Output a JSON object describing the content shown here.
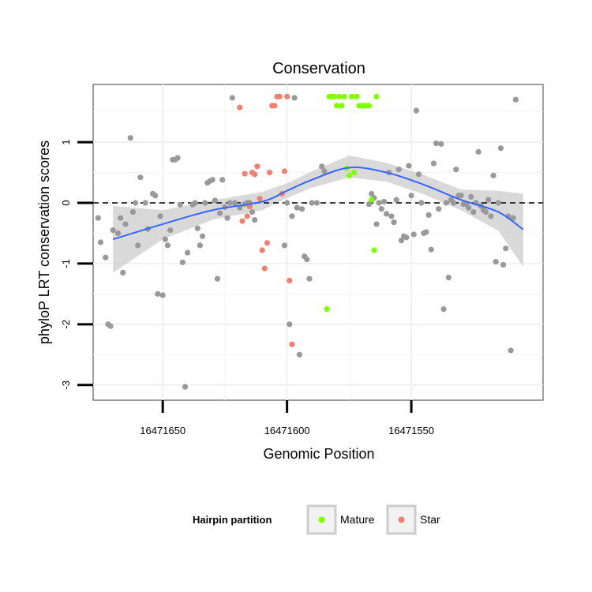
{
  "chart_data": {
    "type": "scatter",
    "title": "Conservation",
    "xlabel": "Genomic Position",
    "ylabel": "phyloP LRT conservation scores",
    "x_reversed": true,
    "xlim": [
      16471678,
      16471497
    ],
    "ylim": [
      -3.25,
      1.95
    ],
    "x_ticks": [
      16471650,
      16471600,
      16471550
    ],
    "y_ticks": [
      -3,
      -2,
      -1,
      0,
      1
    ],
    "grid": true,
    "reference_line": 0,
    "legend": {
      "title": "Hairpin partition",
      "placement": "bottom",
      "entries": [
        {
          "label": "Mature",
          "color": "#7fff00"
        },
        {
          "label": "Star",
          "color": "#f08070"
        }
      ]
    },
    "colors": {
      "other": "#999999",
      "smooth_line": "#3366ff",
      "ribbon": "#cccccc"
    },
    "series": [
      {
        "group": "other",
        "points": [
          [
            16471676,
            -0.25
          ],
          [
            16471675,
            -0.65
          ],
          [
            16471673,
            -0.9
          ],
          [
            16471672,
            -2.0
          ],
          [
            16471671,
            -2.03
          ],
          [
            16471670,
            -0.45
          ],
          [
            16471668,
            -0.5
          ],
          [
            16471667,
            -0.25
          ],
          [
            16471666,
            -1.15
          ],
          [
            16471665,
            -0.35
          ],
          [
            16471663,
            1.07
          ],
          [
            16471662,
            -0.15
          ],
          [
            16471661,
            0.0
          ],
          [
            16471660,
            -0.7
          ],
          [
            16471659,
            0.42
          ],
          [
            16471657,
            0.0
          ],
          [
            16471656,
            -0.43
          ],
          [
            16471654,
            0.15
          ],
          [
            16471653,
            0.12
          ],
          [
            16471652,
            -1.5
          ],
          [
            16471651,
            -0.22
          ],
          [
            16471650,
            -1.52
          ],
          [
            16471649,
            -0.6
          ],
          [
            16471648,
            -0.7
          ],
          [
            16471647,
            -0.45
          ],
          [
            16471646,
            0.71
          ],
          [
            16471645,
            0.71
          ],
          [
            16471644,
            0.74
          ],
          [
            16471643,
            -0.03
          ],
          [
            16471642,
            -0.98
          ],
          [
            16471641,
            -3.03
          ],
          [
            16471640,
            -0.82
          ],
          [
            16471638,
            -0.03
          ],
          [
            16471637,
            0.0
          ],
          [
            16471636,
            -0.42
          ],
          [
            16471635,
            -0.7
          ],
          [
            16471634,
            -0.55
          ],
          [
            16471633,
            0.0
          ],
          [
            16471632,
            0.33
          ],
          [
            16471631,
            0.36
          ],
          [
            16471630,
            0.38
          ],
          [
            16471629,
            0.04
          ],
          [
            16471628,
            -1.25
          ],
          [
            16471627,
            -0.17
          ],
          [
            16471626,
            0.38
          ],
          [
            16471625,
            -0.07
          ],
          [
            16471624,
            -0.25
          ],
          [
            16471623,
            0.0
          ],
          [
            16471622,
            1.73
          ],
          [
            16471621,
            0.0
          ],
          [
            16471619,
            -0.08
          ],
          [
            16471617,
            -0.02
          ],
          [
            16471616,
            0.0
          ],
          [
            16471615,
            0.0
          ],
          [
            16471614,
            -0.15
          ],
          [
            16471613,
            -0.28
          ],
          [
            16471601,
            -0.7
          ],
          [
            16471600,
            0.0
          ],
          [
            16471599,
            -2.0
          ],
          [
            16471598,
            -0.22
          ],
          [
            16471597,
            1.73
          ],
          [
            16471596,
            -0.08
          ],
          [
            16471595,
            -2.5
          ],
          [
            16471594,
            -0.1
          ],
          [
            16471593,
            -0.88
          ],
          [
            16471592,
            -0.93
          ],
          [
            16471591,
            -1.25
          ],
          [
            16471590,
            0.0
          ],
          [
            16471588,
            0.0
          ],
          [
            16471586,
            0.6
          ],
          [
            16471585,
            0.52
          ],
          [
            16471567,
            -0.02
          ],
          [
            16471566,
            0.15
          ],
          [
            16471565,
            0.08
          ],
          [
            16471564,
            -0.35
          ],
          [
            16471563,
            0.0
          ],
          [
            16471562,
            -0.1
          ],
          [
            16471561,
            0.02
          ],
          [
            16471560,
            -0.18
          ],
          [
            16471559,
            0.5
          ],
          [
            16471558,
            -0.22
          ],
          [
            16471557,
            -0.32
          ],
          [
            16471556,
            0.05
          ],
          [
            16471555,
            0.55
          ],
          [
            16471554,
            -0.62
          ],
          [
            16471553,
            -0.55
          ],
          [
            16471552,
            -0.57
          ],
          [
            16471551,
            0.61
          ],
          [
            16471550,
            0.12
          ],
          [
            16471549,
            -0.52
          ],
          [
            16471548,
            1.52
          ],
          [
            16471547,
            0.47
          ],
          [
            16471546,
            0.0
          ],
          [
            16471545,
            -0.5
          ],
          [
            16471544,
            -0.48
          ],
          [
            16471543,
            -0.2
          ],
          [
            16471542,
            -0.77
          ],
          [
            16471541,
            0.65
          ],
          [
            16471540,
            0.98
          ],
          [
            16471539,
            -0.1
          ],
          [
            16471538,
            0.97
          ],
          [
            16471537,
            -1.75
          ],
          [
            16471536,
            0.0
          ],
          [
            16471535,
            -1.23
          ],
          [
            16471534,
            0.05
          ],
          [
            16471533,
            0.0
          ],
          [
            16471532,
            0.55
          ],
          [
            16471531,
            0.12
          ],
          [
            16471530,
            0.12
          ],
          [
            16471529,
            -0.02
          ],
          [
            16471528,
            -0.02
          ],
          [
            16471527,
            -0.08
          ],
          [
            16471526,
            0.1
          ],
          [
            16471525,
            -0.15
          ],
          [
            16471524,
            0.0
          ],
          [
            16471523,
            0.84
          ],
          [
            16471522,
            -0.05
          ],
          [
            16471521,
            -0.12
          ],
          [
            16471520,
            -0.15
          ],
          [
            16471519,
            0.05
          ],
          [
            16471518,
            -0.22
          ],
          [
            16471517,
            0.45
          ],
          [
            16471516,
            -0.97
          ],
          [
            16471515,
            0.0
          ],
          [
            16471514,
            0.9
          ],
          [
            16471513,
            -1.02
          ],
          [
            16471512,
            -0.75
          ],
          [
            16471511,
            -0.22
          ],
          [
            16471510,
            -2.43
          ],
          [
            16471509,
            -0.25
          ],
          [
            16471508,
            1.7
          ]
        ]
      },
      {
        "group": "Star",
        "points": [
          [
            16471619,
            1.57
          ],
          [
            16471618,
            -0.3
          ],
          [
            16471617,
            0.48
          ],
          [
            16471616,
            -0.22
          ],
          [
            16471615,
            -0.06
          ],
          [
            16471614,
            0.5
          ],
          [
            16471613,
            0.47
          ],
          [
            16471612,
            0.6
          ],
          [
            16471611,
            0.07
          ],
          [
            16471610,
            -0.78
          ],
          [
            16471609,
            -1.08
          ],
          [
            16471608,
            -0.66
          ],
          [
            16471607,
            0.5
          ],
          [
            16471606,
            1.6
          ],
          [
            16471605,
            1.6
          ],
          [
            16471604,
            1.75
          ],
          [
            16471603,
            1.75
          ],
          [
            16471602,
            0.15
          ],
          [
            16471601,
            0.52
          ],
          [
            16471600,
            1.75
          ],
          [
            16471599,
            -1.28
          ],
          [
            16471598,
            -2.33
          ]
        ]
      },
      {
        "group": "Mature",
        "points": [
          [
            16471584,
            -1.75
          ],
          [
            16471583,
            1.75
          ],
          [
            16471582,
            1.75
          ],
          [
            16471581,
            1.75
          ],
          [
            16471580,
            1.6
          ],
          [
            16471579,
            1.75
          ],
          [
            16471578,
            1.6
          ],
          [
            16471577,
            1.75
          ],
          [
            16471576,
            0.57
          ],
          [
            16471575,
            0.45
          ],
          [
            16471574,
            1.75
          ],
          [
            16471573,
            0.5
          ],
          [
            16471572,
            1.75
          ],
          [
            16471571,
            1.6
          ],
          [
            16471570,
            1.6
          ],
          [
            16471569,
            1.6
          ],
          [
            16471568,
            1.6
          ],
          [
            16471567,
            1.6
          ],
          [
            16471566,
            0.05
          ],
          [
            16471565,
            -0.78
          ],
          [
            16471564,
            1.75
          ]
        ]
      }
    ],
    "smooth": {
      "x": [
        16471670,
        16471650,
        16471630,
        16471610,
        16471600,
        16471590,
        16471575,
        16471560,
        16471545,
        16471530,
        16471515,
        16471505
      ],
      "y": [
        -0.6,
        -0.35,
        -0.12,
        0.02,
        0.2,
        0.38,
        0.58,
        0.5,
        0.3,
        0.05,
        -0.15,
        -0.44
      ],
      "lower": [
        -1.15,
        -0.6,
        -0.28,
        -0.12,
        0.08,
        0.25,
        0.42,
        0.35,
        0.14,
        -0.12,
        -0.46,
        -1.05
      ],
      "upper": [
        -0.05,
        -0.12,
        0.04,
        0.18,
        0.32,
        0.52,
        0.78,
        0.66,
        0.46,
        0.22,
        0.2,
        0.15
      ]
    }
  }
}
